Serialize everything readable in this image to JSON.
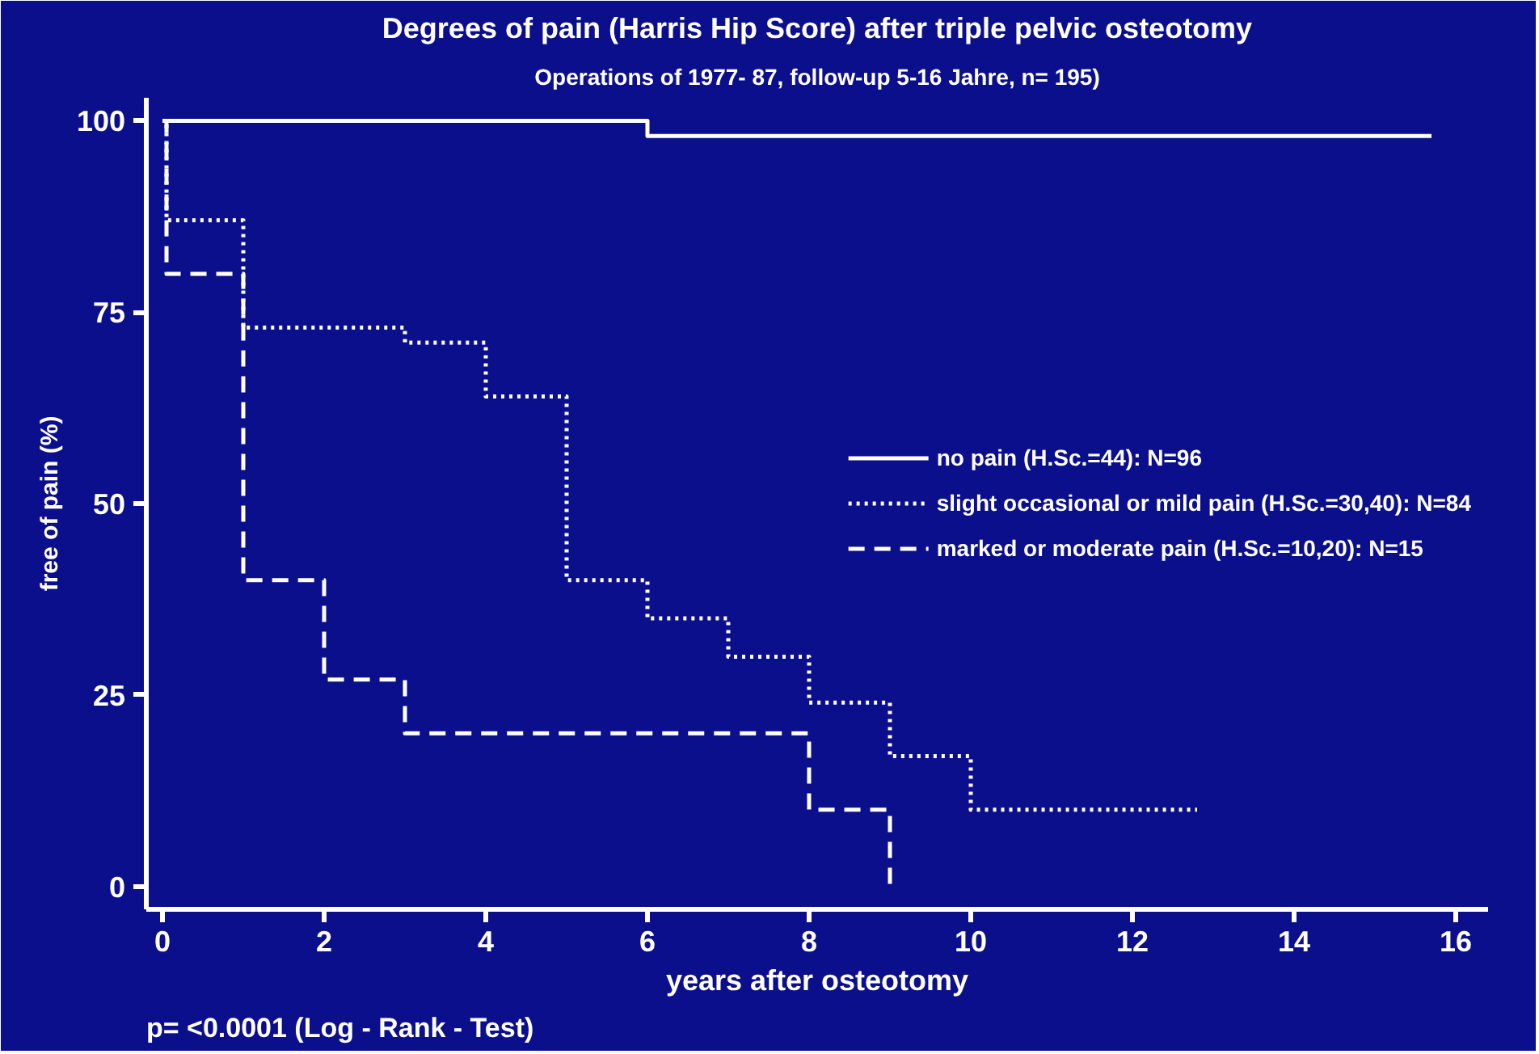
{
  "chart_data": {
    "type": "step",
    "title": "Degrees of pain (Harris Hip Score) after triple pelvic osteotomy",
    "subtitle": "Operations of 1977- 87, follow-up 5-16 Jahre, n= 195)",
    "xlabel": "years after osteotomy",
    "ylabel": "free of pain (%)",
    "annotations": [
      "p= <0.0001 (Log - Rank - Test)"
    ],
    "series": [
      {
        "name": "no pain (H.Sc.=44): N=96",
        "color": "#ffffff",
        "line_style": "solid",
        "x": [
          0,
          6,
          15.7
        ],
        "values": [
          100,
          98,
          98
        ]
      },
      {
        "name": "slight occasional or mild pain (H.Sc.=30,40): N=84",
        "color": "#ffffff",
        "line_style": "dotted",
        "x": [
          0,
          0.05,
          1,
          3,
          4,
          5,
          6,
          7,
          8,
          9,
          10,
          12.8
        ],
        "values": [
          100,
          87,
          73,
          71,
          64,
          40,
          35,
          30,
          24,
          17,
          10,
          10
        ]
      },
      {
        "name": "marked or moderate pain (H.Sc.=10,20): N=15",
        "color": "#ffffff",
        "line_style": "dashed",
        "x": [
          0,
          0.05,
          1,
          2,
          3,
          8,
          9
        ],
        "values": [
          100,
          80,
          40,
          27,
          20,
          10,
          0
        ]
      }
    ],
    "xlim": [
      -0.2,
      16.4
    ],
    "ylim": [
      -3,
      103
    ],
    "xticks": [
      0,
      2,
      4,
      6,
      8,
      10,
      12,
      14,
      16
    ],
    "yticks": [
      0,
      25,
      50,
      75,
      100
    ],
    "grid": false,
    "legend": "right",
    "marker": "none"
  }
}
